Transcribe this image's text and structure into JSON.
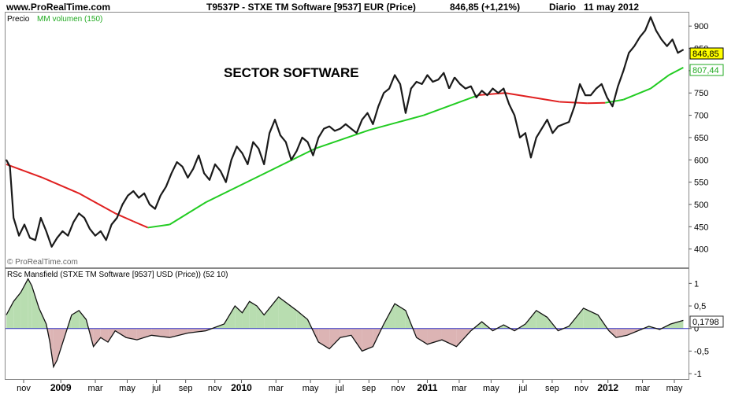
{
  "header": {
    "site": "www.ProRealTime.com",
    "title": "T9537P - STXE TM Software [9537] EUR (Price)",
    "last": "846,85 (+1,21%)",
    "period": "Diario",
    "date": "11 may 2012"
  },
  "chart_data": [
    {
      "type": "line",
      "legend": [
        "Precio",
        "MM volumen (150)"
      ],
      "annotation": "SECTOR SOFTWARE",
      "watermark": "© ProRealTime.com",
      "ylim": [
        380,
        925
      ],
      "yticks": [
        400,
        450,
        500,
        550,
        600,
        650,
        700,
        750,
        800,
        850,
        900
      ],
      "ytick_labels": [
        "400",
        "450",
        "500",
        "550",
        "600",
        "650",
        "700",
        "750",
        "800",
        "850",
        "900"
      ],
      "grid": false,
      "colors": {
        "price": "#1a1a1a",
        "ma_up": "#22cc22",
        "ma_down": "#e02020",
        "last_badge": "#ffff00",
        "ma_badge_text": "#22aa22"
      },
      "badges": {
        "last": "846,85",
        "ma": "807,44"
      },
      "series": [
        {
          "name": "Precio",
          "x": [
            0,
            2,
            4,
            7,
            10,
            13,
            16,
            19,
            22,
            25,
            28,
            31,
            34,
            37,
            40,
            43,
            46,
            49,
            52,
            55,
            58,
            61,
            64,
            67,
            70,
            73,
            76,
            79,
            82,
            85,
            88,
            91,
            94,
            97,
            100,
            103,
            106,
            109,
            112,
            115,
            118,
            121,
            124,
            127,
            130,
            133,
            136,
            139,
            142,
            145,
            148,
            151,
            154,
            157,
            160,
            163,
            166,
            169,
            172,
            175,
            178,
            181,
            184,
            187,
            190,
            193,
            196,
            199,
            202,
            205,
            208,
            211,
            214,
            217,
            220,
            223,
            226,
            229,
            232,
            235,
            238,
            241,
            244
          ],
          "values": [
            600,
            585,
            470,
            430,
            455,
            425,
            420,
            470,
            440,
            405,
            425,
            440,
            430,
            460,
            480,
            470,
            445,
            430,
            440,
            420,
            455,
            470,
            500,
            520,
            530,
            515,
            525,
            500,
            490,
            520,
            540,
            570,
            595,
            585,
            560,
            580,
            610,
            570,
            555,
            590,
            575,
            550,
            600,
            630,
            615,
            590,
            640,
            625,
            590,
            660,
            690,
            655,
            640,
            600,
            620,
            650,
            640,
            610,
            650,
            670,
            675,
            665,
            670,
            680,
            670,
            660,
            690,
            705,
            680,
            720,
            750,
            760,
            790,
            770,
            705,
            760,
            775,
            770,
            790,
            775,
            780,
            795,
            760
          ]
        },
        {
          "name": "Precio (cont.)",
          "x": [
            247,
            250,
            253,
            256,
            259,
            262,
            265,
            268,
            271,
            274,
            277,
            280,
            283,
            286,
            289,
            292,
            295,
            298,
            301,
            304,
            307,
            310,
            313,
            316,
            319,
            322,
            325,
            328,
            331,
            334,
            337,
            340,
            343,
            346,
            349,
            352,
            355,
            358,
            361,
            364,
            367,
            370,
            373
          ],
          "values": [
            785,
            770,
            760,
            765,
            740,
            755,
            745,
            760,
            750,
            760,
            725,
            700,
            650,
            660,
            605,
            650,
            670,
            690,
            660,
            675,
            680,
            685,
            720,
            770,
            745,
            745,
            760,
            770,
            740,
            720,
            765,
            800,
            840,
            855,
            875,
            890,
            920,
            890,
            870,
            855,
            870,
            840,
            847
          ]
        },
        {
          "name": "MM volumen (150)",
          "x": [
            0,
            20,
            40,
            60,
            70,
            78,
            90,
            110,
            140,
            170,
            200,
            230,
            260,
            275,
            290,
            305,
            320,
            330,
            340,
            355,
            365,
            373
          ],
          "values": [
            590,
            560,
            525,
            480,
            462,
            448,
            455,
            505,
            565,
            625,
            667,
            700,
            745,
            750,
            740,
            730,
            727,
            728,
            735,
            760,
            790,
            807
          ]
        }
      ]
    },
    {
      "type": "area",
      "legend": "RSc Mansfield (STXE TM Software [9537] USD (Price)) (52 10)",
      "ylim": [
        -1.05,
        1.25
      ],
      "yticks": [
        1,
        0.5,
        0,
        -0.5,
        -1
      ],
      "ytick_labels": [
        "1",
        "0,5",
        "0",
        "-0,5",
        "-1"
      ],
      "colors": {
        "positive": "#b8ddb0",
        "negative": "#dcb4b4",
        "zero_line": "#3030c0"
      },
      "badge": "0,1798",
      "series": [
        {
          "name": "RSc Mansfield",
          "x": [
            0,
            4,
            8,
            12,
            14,
            18,
            22,
            24,
            26,
            28,
            32,
            36,
            40,
            44,
            48,
            52,
            56,
            60,
            66,
            72,
            80,
            90,
            100,
            110,
            120,
            126,
            130,
            134,
            138,
            142,
            150,
            160,
            166,
            172,
            178,
            184,
            190,
            196,
            202,
            208,
            214,
            220,
            226,
            232,
            240,
            248,
            256,
            262,
            268,
            274,
            280,
            286,
            292,
            298,
            304,
            310,
            318,
            326,
            332,
            336,
            342,
            348,
            354,
            360,
            366,
            373
          ],
          "values": [
            0.3,
            0.6,
            0.8,
            1.1,
            0.95,
            0.45,
            0.1,
            -0.3,
            -0.85,
            -0.7,
            -0.2,
            0.3,
            0.4,
            0.2,
            -0.4,
            -0.2,
            -0.3,
            -0.05,
            -0.2,
            -0.25,
            -0.15,
            -0.2,
            -0.1,
            -0.05,
            0.1,
            0.5,
            0.35,
            0.6,
            0.5,
            0.3,
            0.7,
            0.4,
            0.2,
            -0.3,
            -0.45,
            -0.2,
            -0.15,
            -0.5,
            -0.4,
            0.1,
            0.55,
            0.4,
            -0.2,
            -0.35,
            -0.25,
            -0.4,
            -0.05,
            0.15,
            -0.05,
            0.08,
            -0.05,
            0.1,
            0.4,
            0.25,
            -0.05,
            0.05,
            0.45,
            0.3,
            -0.05,
            -0.2,
            -0.15,
            -0.05,
            0.05,
            -0.02,
            0.1,
            0.18
          ]
        }
      ]
    }
  ],
  "x_axis": {
    "labels": [
      "nov",
      "2009",
      "mar",
      "may",
      "jul",
      "sep",
      "nov",
      "2010",
      "mar",
      "may",
      "jul",
      "sep",
      "nov",
      "2011",
      "mar",
      "may",
      "jul",
      "sep",
      "nov",
      "2012",
      "mar",
      "may"
    ],
    "positions": [
      0,
      14,
      27,
      39,
      50,
      61,
      72,
      82,
      95,
      108,
      119,
      130,
      141,
      152,
      164,
      176,
      188,
      199,
      210,
      220,
      233,
      245
    ],
    "bold": [
      false,
      true,
      false,
      false,
      false,
      false,
      false,
      true,
      false,
      false,
      false,
      false,
      false,
      true,
      false,
      false,
      false,
      false,
      false,
      true,
      false,
      false
    ]
  }
}
